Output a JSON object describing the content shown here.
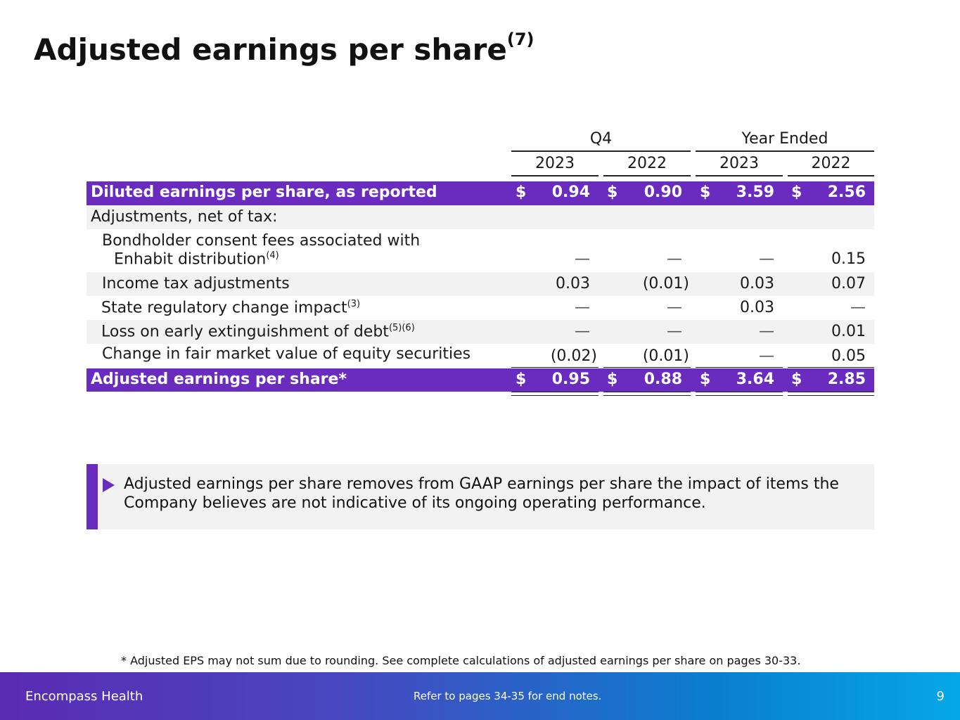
{
  "title": "Adjusted earnings per share",
  "title_note": "(7)",
  "headers": {
    "q4": "Q4",
    "year_ended": "Year Ended",
    "years": [
      "2023",
      "2022",
      "2023",
      "2022"
    ]
  },
  "rows": [
    {
      "label": "Diluted earnings per share, as reported",
      "note": "",
      "values": [
        "0.94",
        "0.90",
        "3.59",
        "2.56"
      ],
      "dollar": "$"
    },
    {
      "label": "Adjustments, net of tax:",
      "note": "",
      "values": [
        "",
        "",
        "",
        ""
      ]
    },
    {
      "label": "Bondholder consent fees associated with",
      "label2": "Enhabit distribution",
      "note": "(4)",
      "values": [
        "—",
        "—",
        "—",
        "0.15"
      ]
    },
    {
      "label": "Income tax adjustments",
      "note": "",
      "values": [
        "0.03",
        "(0.01)",
        "0.03",
        "0.07"
      ]
    },
    {
      "label": "State regulatory change impact",
      "note": "(3)",
      "values": [
        "—",
        "—",
        "0.03",
        "—"
      ]
    },
    {
      "label": "Loss on early extinguishment of debt",
      "note": "(5)(6)",
      "values": [
        "—",
        "—",
        "—",
        "0.01"
      ]
    },
    {
      "label": "Change in fair market value of equity securities",
      "note": "",
      "values": [
        "(0.02)",
        "(0.01)",
        "—",
        "0.05"
      ]
    },
    {
      "label": "Adjusted earnings per share*",
      "note": "",
      "values": [
        "0.95",
        "0.88",
        "3.64",
        "2.85"
      ],
      "dollar": "$"
    }
  ],
  "callout": "Adjusted earnings per share removes from GAAP earnings per share the impact of items the Company believes are not indicative of its ongoing operating performance.",
  "footnote": "*  Adjusted EPS may not sum due to rounding. See complete calculations of adjusted earnings per share on pages 30-33.",
  "footer": {
    "company": "Encompass Health",
    "reference": "Refer to pages 34-35 for end notes.",
    "page": "9"
  },
  "colors": {
    "accent": "#6a2bbf",
    "band_start": "#5b2bb3",
    "band_end": "#05a8e6",
    "row_gray": "#f2f2f2"
  }
}
